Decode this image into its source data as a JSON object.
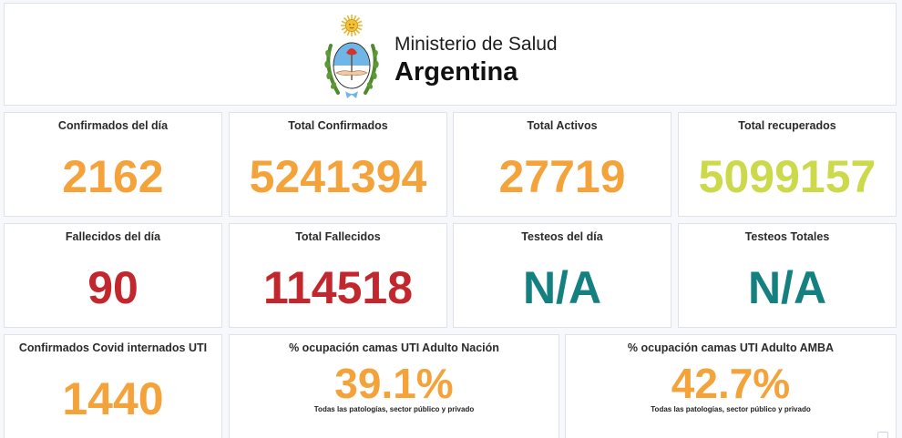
{
  "header": {
    "line1": "Ministerio de Salud",
    "line2": "Argentina"
  },
  "colors": {
    "orange": "#f4a33b",
    "lime": "#cbd94a",
    "red": "#c1272d",
    "teal": "#14807f"
  },
  "row1": [
    {
      "title": "Confirmados del día",
      "value": "2162"
    },
    {
      "title": "Total Confirmados",
      "value": "5241394"
    },
    {
      "title": "Total Activos",
      "value": "27719"
    },
    {
      "title": "Total recuperados",
      "value": "5099157"
    }
  ],
  "row2": [
    {
      "title": "Fallecidos del día",
      "value": "90"
    },
    {
      "title": "Total Fallecidos",
      "value": "114518"
    },
    {
      "title": "Testeos del día",
      "value": "N/A"
    },
    {
      "title": "Testeos Totales",
      "value": "N/A"
    }
  ],
  "row3": [
    {
      "title": "Confirmados Covid internados UTI",
      "value": "1440"
    },
    {
      "title": "% ocupación camas UTI Adulto Nación",
      "value": "39.1%",
      "note": "Todas las patologías, sector público y privado"
    },
    {
      "title": "% ocupación camas UTI Adulto AMBA",
      "value": "42.7%",
      "note": "Todas las patologías, sector público y privado"
    }
  ]
}
